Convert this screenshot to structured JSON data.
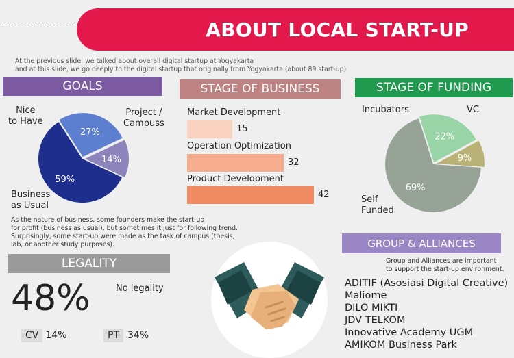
{
  "header": {
    "title": "ABOUT LOCAL START-UP"
  },
  "intro": {
    "line1": "At the previous slide, we talked about overall digital startup at Yogyakarta",
    "line2": "and at this slide, we go deeply to the digital startup that originally from Yogyakarta (about 89 start-up)"
  },
  "goals": {
    "title": "GOALS",
    "labels": {
      "nice": "Nice\nto Have",
      "project": "Project /\nCampuss",
      "business": "Business\nas Usual"
    },
    "note": {
      "line1": "As the nature of business, some founders make the start-up",
      "line2": "for profit (business as usual), but sometimes it just for following trend.",
      "line3": "Surprisingly, some start-up were made as the task of campus (thesis,",
      "line4": "lab, or another study purposes)."
    }
  },
  "stage_business": {
    "title": "STAGE OF BUSINESS",
    "items": [
      {
        "label": "Market Development",
        "value": "15",
        "color": "#f9d3c0"
      },
      {
        "label": "Operation Optimization",
        "value": "32",
        "color": "#f6ad8e"
      },
      {
        "label": "Product Development",
        "value": "42",
        "color": "#f08a62"
      }
    ]
  },
  "stage_funding": {
    "title": "STAGE OF FUNDING",
    "labels": {
      "incubators": "Incubators",
      "vc": "VC",
      "self": "Self\nFunded"
    }
  },
  "legality": {
    "title": "LEGALITY",
    "big": "48%",
    "big_label": "No legality",
    "cv_label": "CV",
    "cv_value": "14%",
    "pt_label": "PT",
    "pt_value": "34%"
  },
  "groups": {
    "title": "GROUP & ALLIANCES",
    "note_line1": "Group and Alliances are important",
    "note_line2": "to support the start-up environment.",
    "items": [
      "ADITIF (Asosiasi Digital Creative)",
      "Maliome",
      "DILO MIKTI",
      "JDV TELKOM",
      "Innovative Academy UGM",
      "AMIKOM Business Park"
    ]
  },
  "chart_data": [
    {
      "type": "pie",
      "categories": [
        "Business as Usual",
        "Nice to Have",
        "Project / Campuss"
      ],
      "values": [
        59,
        27,
        14
      ],
      "colors": [
        "#1d2e8c",
        "#5d7fd0",
        "#8d84bb"
      ],
      "value_labels": [
        "59%",
        "27%",
        "14%"
      ]
    },
    {
      "type": "bar",
      "categories": [
        "Market Development",
        "Operation Optimization",
        "Product Development"
      ],
      "values": [
        15,
        32,
        42
      ]
    },
    {
      "type": "pie",
      "categories": [
        "Self Funded",
        "Incubators",
        "VC"
      ],
      "values": [
        69,
        22,
        9
      ],
      "colors": [
        "#97a396",
        "#98d4a5",
        "#b9b176"
      ],
      "value_labels": [
        "69%",
        "22%",
        "9%"
      ]
    }
  ]
}
